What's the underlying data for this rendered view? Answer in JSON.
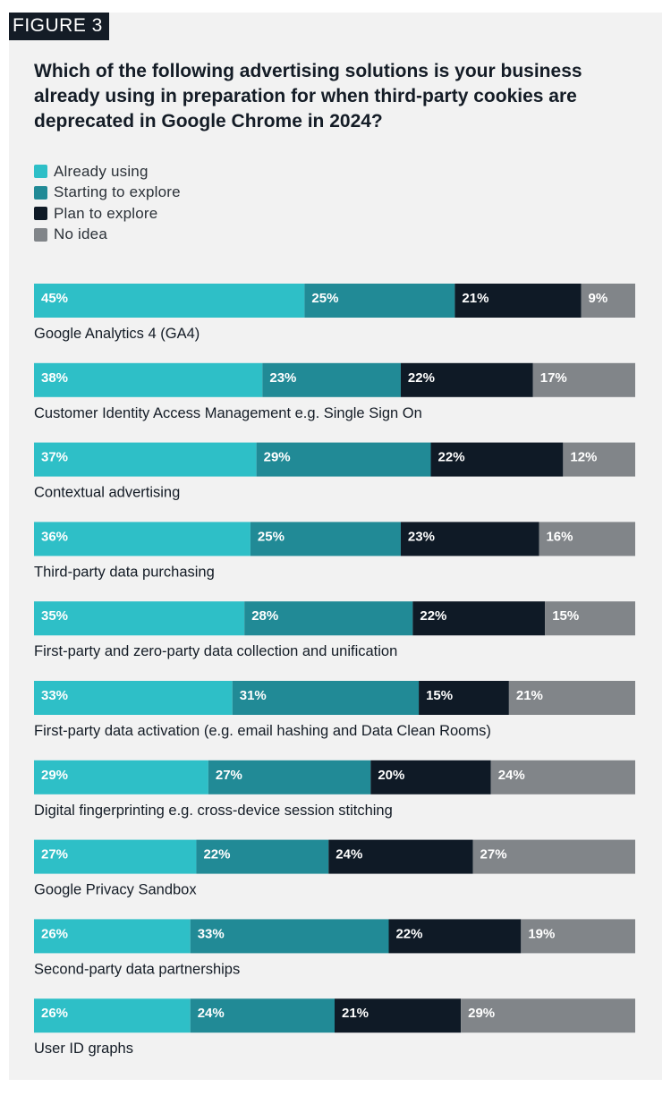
{
  "figure_tag": "FIGURE 3",
  "title": "Which of the following advertising solutions is your business already using in preparation for when third-party cookies are deprecated in Google Chrome in 2024?",
  "chart_data": {
    "type": "bar",
    "orientation": "horizontal",
    "stacked": "100%",
    "value_suffix": "%",
    "categories": [
      "Google Analytics 4 (GA4)",
      "Customer Identity Access Management e.g. Single Sign On",
      "Contextual advertising",
      "Third-party data purchasing",
      "First-party and zero-party data collection and unification",
      "First-party data activation (e.g. email hashing and Data Clean Rooms)",
      "Digital fingerprinting e.g. cross-device session stitching",
      "Google Privacy Sandbox",
      "Second-party data partnerships",
      "User ID graphs"
    ],
    "series": [
      {
        "name": "Already using",
        "color": "#2ebfc7",
        "values": [
          45,
          38,
          37,
          36,
          35,
          33,
          29,
          27,
          26,
          26
        ]
      },
      {
        "name": "Starting to explore",
        "color": "#218a96",
        "values": [
          25,
          23,
          29,
          25,
          28,
          31,
          27,
          22,
          33,
          24
        ]
      },
      {
        "name": "Plan to explore",
        "color": "#0f1a26",
        "values": [
          21,
          22,
          22,
          23,
          22,
          15,
          20,
          24,
          22,
          21
        ]
      },
      {
        "name": "No idea",
        "color": "#818589",
        "values": [
          9,
          17,
          12,
          16,
          15,
          21,
          24,
          27,
          19,
          29
        ]
      }
    ],
    "legend_position": "top-left",
    "grid": false
  }
}
